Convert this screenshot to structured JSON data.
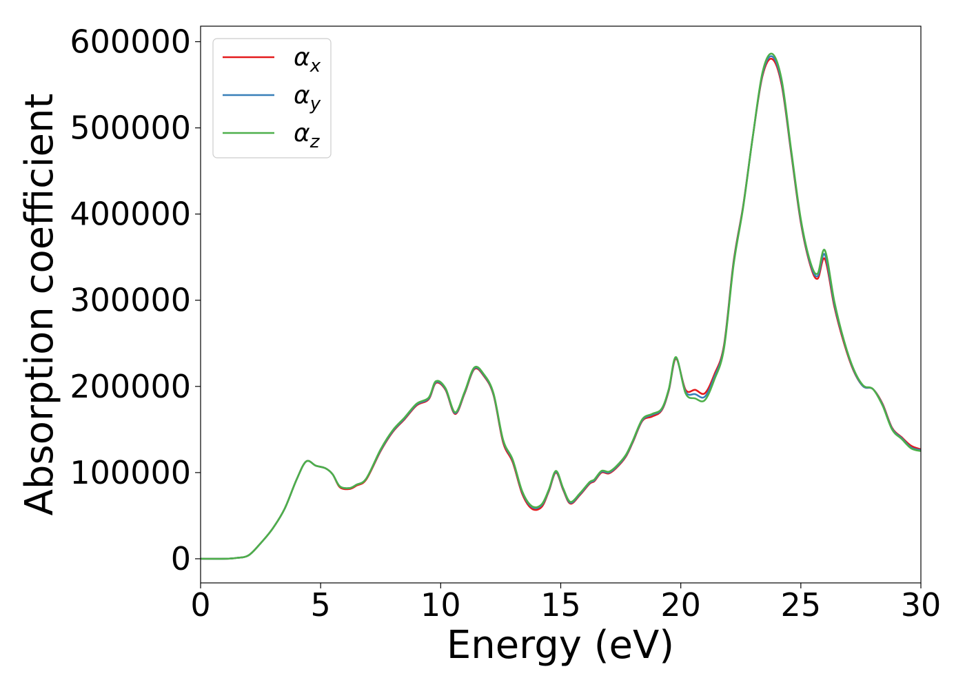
{
  "chart_data": {
    "type": "line",
    "title": "",
    "xlabel": "Energy (eV)",
    "ylabel": "Absorption coefficient",
    "xlim": [
      0,
      30
    ],
    "ylim": [
      -28000,
      618000
    ],
    "xticks": [
      "0",
      "5",
      "10",
      "15",
      "20",
      "25",
      "30"
    ],
    "yticks": [
      "0",
      "100000",
      "200000",
      "300000",
      "400000",
      "500000",
      "600000"
    ],
    "grid": false,
    "legend": {
      "position": "top-left",
      "entries": [
        {
          "base": "α",
          "sub": "x"
        },
        {
          "base": "α",
          "sub": "y"
        },
        {
          "base": "α",
          "sub": "z"
        }
      ]
    },
    "colors": [
      "#e41a1c",
      "#377eb8",
      "#4daf4a"
    ],
    "series": [
      {
        "color": "#e41a1c",
        "x": [
          0,
          1,
          1.5,
          2,
          2.5,
          3,
          3.5,
          4,
          4.4,
          4.8,
          5.2,
          5.5,
          5.8,
          6.2,
          6.5,
          6.9,
          7.5,
          8,
          8.5,
          9,
          9.5,
          9.8,
          10.2,
          10.6,
          11,
          11.4,
          11.8,
          12.2,
          12.6,
          13,
          13.4,
          13.8,
          14.2,
          14.5,
          14.8,
          15.1,
          15.4,
          15.8,
          16.2,
          16.4,
          16.7,
          17,
          17.3,
          17.7,
          18,
          18.4,
          18.8,
          19.2,
          19.5,
          19.8,
          20.2,
          20.6,
          21,
          21.4,
          21.8,
          22.2,
          22.6,
          23,
          23.4,
          23.8,
          24.2,
          24.6,
          25,
          25.4,
          25.7,
          26,
          26.4,
          26.8,
          27.2,
          27.6,
          28,
          28.4,
          28.8,
          29.2,
          29.6,
          30
        ],
        "y": [
          0,
          0,
          1000,
          4000,
          18000,
          35000,
          58000,
          92000,
          113000,
          108000,
          105000,
          98000,
          83000,
          81000,
          85000,
          92000,
          125000,
          147000,
          162000,
          178000,
          185000,
          204000,
          196000,
          168000,
          192000,
          220000,
          212000,
          190000,
          135000,
          112000,
          75000,
          58000,
          60000,
          78000,
          100000,
          80000,
          64000,
          74000,
          87000,
          90000,
          100000,
          99000,
          105000,
          118000,
          135000,
          160000,
          165000,
          172000,
          195000,
          232000,
          196000,
          196000,
          192000,
          214000,
          248000,
          345000,
          410000,
          490000,
          560000,
          580000,
          550000,
          470000,
          390000,
          340000,
          325000,
          348000,
          292000,
          250000,
          218000,
          200000,
          197000,
          180000,
          152000,
          141000,
          131000,
          127000
        ]
      },
      {
        "color": "#377eb8",
        "x": [
          0,
          1,
          1.5,
          2,
          2.5,
          3,
          3.5,
          4,
          4.4,
          4.8,
          5.2,
          5.5,
          5.8,
          6.2,
          6.5,
          6.9,
          7.5,
          8,
          8.5,
          9,
          9.5,
          9.8,
          10.2,
          10.6,
          11,
          11.4,
          11.8,
          12.2,
          12.6,
          13,
          13.4,
          13.8,
          14.2,
          14.5,
          14.8,
          15.1,
          15.4,
          15.8,
          16.2,
          16.4,
          16.7,
          17,
          17.3,
          17.7,
          18,
          18.4,
          18.8,
          19.2,
          19.5,
          19.8,
          20.2,
          20.6,
          21,
          21.4,
          21.8,
          22.2,
          22.6,
          23,
          23.4,
          23.8,
          24.2,
          24.6,
          25,
          25.4,
          25.7,
          26,
          26.4,
          26.8,
          27.2,
          27.6,
          28,
          28.4,
          28.8,
          29.2,
          29.6,
          30
        ],
        "y": [
          0,
          0,
          1000,
          4000,
          18000,
          35000,
          58000,
          92000,
          113000,
          108000,
          105000,
          98000,
          84000,
          82000,
          86000,
          93000,
          126000,
          148000,
          163000,
          179000,
          186000,
          205000,
          197000,
          169000,
          193000,
          221000,
          213000,
          191000,
          137000,
          114000,
          77000,
          60000,
          62000,
          79000,
          101000,
          81000,
          65000,
          75000,
          88000,
          91000,
          101000,
          100000,
          106000,
          119000,
          136000,
          161000,
          167000,
          173000,
          196000,
          233000,
          194000,
          191000,
          188000,
          211000,
          246000,
          343000,
          409000,
          490000,
          562000,
          583000,
          553000,
          472000,
          392000,
          342000,
          328000,
          353000,
          295000,
          252000,
          219000,
          200000,
          197000,
          179000,
          151000,
          140000,
          129000,
          126000
        ]
      },
      {
        "color": "#4daf4a",
        "x": [
          0,
          1,
          1.5,
          2,
          2.5,
          3,
          3.5,
          4,
          4.4,
          4.8,
          5.2,
          5.5,
          5.8,
          6.2,
          6.5,
          6.9,
          7.5,
          8,
          8.5,
          9,
          9.5,
          9.8,
          10.2,
          10.6,
          11,
          11.4,
          11.8,
          12.2,
          12.6,
          13,
          13.4,
          13.8,
          14.2,
          14.5,
          14.8,
          15.1,
          15.4,
          15.8,
          16.2,
          16.4,
          16.7,
          17,
          17.3,
          17.7,
          18,
          18.4,
          18.8,
          19.2,
          19.5,
          19.8,
          20.2,
          20.6,
          21,
          21.4,
          21.8,
          22.2,
          22.6,
          23,
          23.4,
          23.8,
          24.2,
          24.6,
          25,
          25.4,
          25.7,
          26,
          26.4,
          26.8,
          27.2,
          27.6,
          28,
          28.4,
          28.8,
          29.2,
          29.6,
          30
        ],
        "y": [
          0,
          0,
          1000,
          4000,
          18000,
          35000,
          58000,
          92000,
          113000,
          108000,
          105000,
          98000,
          84000,
          82000,
          86000,
          93000,
          127000,
          149000,
          164000,
          180000,
          187000,
          206000,
          198000,
          170000,
          194000,
          222000,
          214000,
          192000,
          138000,
          115000,
          78000,
          61000,
          63000,
          80000,
          102000,
          82000,
          66000,
          76000,
          89000,
          92000,
          102000,
          101000,
          107000,
          120000,
          137000,
          162000,
          168000,
          174000,
          197000,
          234000,
          192000,
          186000,
          184000,
          208000,
          244000,
          341000,
          408000,
          490000,
          564000,
          586000,
          556000,
          474000,
          394000,
          344000,
          331000,
          358000,
          298000,
          253000,
          220000,
          201000,
          197000,
          178000,
          150000,
          139000,
          128000,
          125000
        ]
      }
    ]
  }
}
